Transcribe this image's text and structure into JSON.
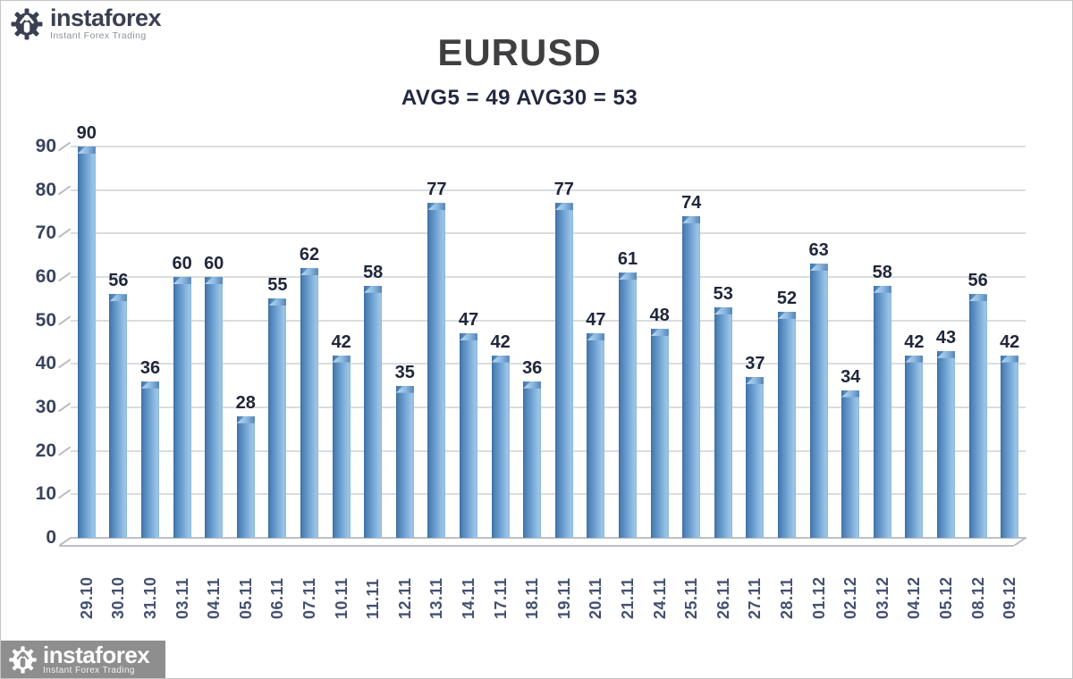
{
  "page": {
    "background": "#ffffff",
    "border_color": "#c5c5c5"
  },
  "logo_top": {
    "brand": "instaforex",
    "tagline": "Instant Forex Trading",
    "icon": "gear-person-icon",
    "brand_color": "#3a4052",
    "tagline_color": "#8d929e"
  },
  "logo_bottom": {
    "brand": "instaforex",
    "tagline": "Instant Forex Trading",
    "icon": "gear-person-icon",
    "banner_color": "#8e8e8e",
    "text_color": "#ffffff"
  },
  "chart_data": {
    "type": "bar",
    "title": "EURUSD",
    "subtitle": "AVG5 = 49 AVG30 = 53",
    "categories": [
      "29.10",
      "30.10",
      "31.10",
      "03.11",
      "04.11",
      "05.11",
      "06.11",
      "07.11",
      "10.11",
      "11.11",
      "12.11",
      "13.11",
      "14.11",
      "17.11",
      "18.11",
      "19.11",
      "20.11",
      "21.11",
      "24.11",
      "25.11",
      "26.11",
      "27.11",
      "28.11",
      "01.12",
      "02.12",
      "03.12",
      "04.12",
      "05.12",
      "08.12",
      "09.12"
    ],
    "values": [
      90,
      56,
      36,
      60,
      60,
      28,
      55,
      62,
      42,
      58,
      35,
      77,
      47,
      42,
      36,
      77,
      47,
      61,
      48,
      74,
      53,
      37,
      52,
      63,
      34,
      58,
      42,
      43,
      56,
      42
    ],
    "xlabel": "",
    "ylabel": "",
    "ylim": [
      0,
      90
    ],
    "ytick_step": 10,
    "yticks": [
      90,
      80,
      70,
      60,
      50,
      40,
      30,
      20,
      10,
      0
    ],
    "grid": true,
    "legend": false,
    "x_labels_rotated_degrees": 90,
    "bar_gradient": [
      "#3c6da3",
      "#4d80b4",
      "#6fa2d2",
      "#9cc5e7"
    ],
    "gridline_color": "#dadcdf",
    "axis_label_color": "#39435e",
    "value_label_color": "#20273a",
    "title_color": "#3f3f41",
    "subtitle_color": "#232840"
  }
}
